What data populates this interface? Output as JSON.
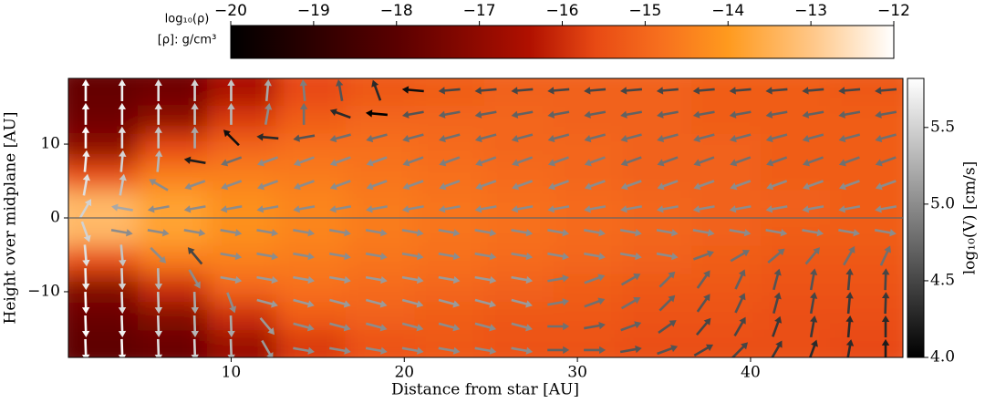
{
  "chart_data": {
    "type": "heatmap",
    "xlabel": "Distance from star  [AU]",
    "ylabel": "Height over midplane [AU]",
    "xlim": [
      0.6,
      48.8
    ],
    "ylim": [
      -18.9,
      18.9
    ],
    "xticks": [
      10,
      20,
      30,
      40
    ],
    "yticks": [
      {
        "value": -10,
        "label": "−10"
      },
      0,
      10
    ],
    "midline": true,
    "density": {
      "label": "log₁₀(ρ)",
      "unit_label": "[ρ]: g/cm³",
      "clim": [
        -20,
        -12
      ],
      "cticks": [
        {
          "value": -20,
          "label": "−20"
        },
        {
          "value": -19,
          "label": "−19"
        },
        {
          "value": -18,
          "label": "−18"
        },
        {
          "value": -17,
          "label": "−17"
        },
        {
          "value": -16,
          "label": "−16"
        },
        {
          "value": -15,
          "label": "−15"
        },
        {
          "value": -14,
          "label": "−14"
        },
        {
          "value": -13,
          "label": "−13"
        },
        {
          "value": -12,
          "label": "−12"
        }
      ],
      "x": [
        2.6,
        6.6,
        10.6,
        14.6,
        18.6,
        22.6,
        26.6,
        30.6,
        34.6,
        38.6,
        42.6,
        46.6
      ],
      "y": [
        17.1,
        13.3,
        9.5,
        5.7,
        1.9,
        -1.9,
        -5.7,
        -9.5,
        -13.3,
        -17.1
      ],
      "values": [
        [
          -17.8,
          -17.6,
          -16.5,
          -15.6,
          -15.3,
          -15.2,
          -15.1,
          -15.1,
          -15.1,
          -15.2,
          -15.2,
          -15.3
        ],
        [
          -17.6,
          -17.0,
          -15.8,
          -15.2,
          -15.0,
          -15.0,
          -15.0,
          -15.1,
          -15.1,
          -15.2,
          -15.2,
          -15.2
        ],
        [
          -17.0,
          -15.6,
          -15.0,
          -14.8,
          -14.8,
          -14.9,
          -15.0,
          -15.0,
          -15.1,
          -15.1,
          -15.2,
          -15.2
        ],
        [
          -15.5,
          -14.5,
          -14.5,
          -14.6,
          -14.7,
          -14.8,
          -14.9,
          -15.0,
          -15.1,
          -15.1,
          -15.2,
          -15.2
        ],
        [
          -13.3,
          -13.8,
          -14.2,
          -14.4,
          -14.6,
          -14.7,
          -14.8,
          -14.9,
          -15.0,
          -15.1,
          -15.1,
          -15.2
        ],
        [
          -13.3,
          -13.8,
          -14.2,
          -14.4,
          -14.6,
          -14.7,
          -14.8,
          -14.9,
          -15.0,
          -15.1,
          -15.2,
          -15.2
        ],
        [
          -15.5,
          -14.6,
          -14.5,
          -14.6,
          -14.7,
          -14.8,
          -14.9,
          -15.0,
          -15.1,
          -15.2,
          -15.3,
          -15.3
        ],
        [
          -17.2,
          -16.0,
          -15.0,
          -14.8,
          -14.9,
          -15.0,
          -15.1,
          -15.2,
          -15.3,
          -15.3,
          -15.4,
          -15.4
        ],
        [
          -17.7,
          -17.2,
          -16.0,
          -15.2,
          -15.1,
          -15.2,
          -15.3,
          -15.3,
          -15.4,
          -15.4,
          -15.5,
          -15.5
        ],
        [
          -17.9,
          -17.7,
          -16.8,
          -15.8,
          -15.4,
          -15.3,
          -15.4,
          -15.4,
          -15.5,
          -15.5,
          -15.5,
          -15.6
        ]
      ]
    },
    "quiver": {
      "label": "log₁₀(V) [cm/s]",
      "clim": [
        4.0,
        5.82
      ],
      "cticks": [
        {
          "value": 4.0,
          "label": "4.0"
        },
        4.5,
        {
          "value": 5.0,
          "label": "5.0"
        },
        5.5
      ],
      "x": [
        1.6,
        3.7,
        5.8,
        7.9,
        10,
        12.1,
        14.2,
        16.3,
        18.4,
        20.5,
        22.6,
        24.7,
        26.8,
        28.9,
        31,
        33.1,
        35.2,
        37.3,
        39.4,
        41.5,
        43.6,
        45.7,
        47.8
      ],
      "y": [
        17.3,
        14.1,
        10.9,
        7.7,
        4.5,
        1.3,
        -1.9,
        -5.1,
        -8.3,
        -11.5,
        -14.7,
        -17.9
      ],
      "angle": [
        [
          90,
          90,
          90,
          90,
          90,
          85,
          95,
          100,
          110,
          175,
          185,
          185,
          185,
          185,
          185,
          185,
          185,
          185,
          185,
          185,
          185,
          185,
          185
        ],
        [
          90,
          90,
          90,
          90,
          90,
          80,
          90,
          160,
          175,
          190,
          190,
          190,
          190,
          190,
          190,
          190,
          190,
          190,
          190,
          190,
          190,
          190,
          190
        ],
        [
          90,
          90,
          90,
          90,
          135,
          175,
          190,
          195,
          195,
          195,
          195,
          195,
          195,
          195,
          195,
          195,
          195,
          195,
          195,
          195,
          195,
          195,
          195
        ],
        [
          85,
          85,
          85,
          170,
          200,
          200,
          200,
          200,
          200,
          200,
          200,
          200,
          200,
          200,
          200,
          200,
          200,
          200,
          200,
          200,
          200,
          200,
          200
        ],
        [
          80,
          80,
          150,
          200,
          200,
          200,
          200,
          200,
          200,
          200,
          200,
          200,
          200,
          200,
          200,
          200,
          200,
          200,
          200,
          200,
          200,
          200,
          200
        ],
        [
          60,
          170,
          190,
          190,
          190,
          190,
          190,
          190,
          190,
          190,
          190,
          190,
          190,
          190,
          190,
          190,
          190,
          190,
          190,
          190,
          190,
          190,
          190
        ],
        [
          -70,
          -10,
          -10,
          -10,
          -10,
          -10,
          -10,
          -10,
          -10,
          -10,
          -10,
          -10,
          -10,
          -10,
          -10,
          -10,
          -10,
          -10,
          -10,
          -10,
          -10,
          -10,
          -10
        ],
        [
          -85,
          -85,
          -45,
          130,
          -10,
          -10,
          -10,
          -10,
          -10,
          -10,
          -10,
          -10,
          -10,
          -10,
          -10,
          -10,
          -10,
          20,
          30,
          40,
          50,
          60,
          65
        ],
        [
          -88,
          -88,
          -88,
          -60,
          -10,
          -10,
          -10,
          -10,
          -10,
          -10,
          -10,
          -10,
          -10,
          10,
          20,
          30,
          45,
          55,
          65,
          75,
          80,
          85,
          88
        ],
        [
          -88,
          -88,
          -88,
          -88,
          -70,
          -15,
          -15,
          -15,
          -15,
          -15,
          -15,
          -15,
          -15,
          10,
          20,
          30,
          45,
          55,
          65,
          75,
          80,
          85,
          88
        ],
        [
          -88,
          -88,
          -88,
          -88,
          -88,
          -50,
          -15,
          -15,
          -15,
          -15,
          -15,
          -15,
          -15,
          0,
          10,
          20,
          35,
          50,
          60,
          70,
          80,
          85,
          90
        ],
        [
          -88,
          -88,
          -88,
          -88,
          -88,
          -60,
          -10,
          -10,
          -10,
          -10,
          -10,
          -10,
          -10,
          0,
          0,
          10,
          20,
          30,
          45,
          60,
          70,
          80,
          90
        ]
      ],
      "log_speed": [
        [
          5.8,
          5.7,
          5.6,
          5.5,
          5.4,
          5.2,
          4.9,
          4.6,
          4.3,
          4.1,
          4.5,
          4.5,
          4.5,
          4.5,
          4.5,
          4.5,
          4.5,
          4.5,
          4.5,
          4.5,
          4.5,
          4.5,
          4.5
        ],
        [
          5.8,
          5.7,
          5.6,
          5.4,
          5.3,
          5.0,
          4.8,
          4.3,
          4.0,
          4.6,
          4.7,
          4.7,
          4.7,
          4.7,
          4.7,
          4.7,
          4.7,
          4.7,
          4.7,
          4.7,
          4.7,
          4.7,
          4.7
        ],
        [
          5.8,
          5.6,
          5.4,
          5.2,
          4.1,
          4.3,
          4.6,
          4.8,
          4.8,
          4.8,
          4.8,
          4.8,
          4.8,
          4.8,
          4.8,
          4.8,
          4.8,
          4.8,
          4.8,
          4.8,
          4.8,
          4.8,
          4.8
        ],
        [
          5.7,
          5.5,
          5.3,
          4.2,
          4.8,
          5.0,
          5.0,
          5.0,
          5.0,
          4.9,
          4.9,
          4.9,
          4.9,
          4.9,
          4.9,
          4.8,
          4.8,
          4.8,
          4.8,
          4.8,
          4.8,
          4.8,
          4.8
        ],
        [
          5.6,
          5.4,
          5.0,
          5.0,
          5.0,
          5.0,
          5.0,
          5.0,
          5.0,
          5.0,
          5.0,
          5.0,
          5.0,
          5.0,
          5.0,
          5.0,
          5.0,
          5.0,
          5.0,
          5.0,
          5.0,
          5.0,
          5.0
        ],
        [
          5.5,
          5.2,
          5.0,
          5.0,
          5.0,
          5.0,
          5.0,
          5.0,
          5.0,
          5.0,
          5.0,
          5.0,
          5.0,
          5.0,
          5.0,
          5.0,
          5.0,
          5.0,
          5.0,
          5.0,
          5.0,
          5.0,
          5.0
        ],
        [
          5.5,
          5.0,
          5.0,
          5.0,
          5.0,
          5.0,
          5.0,
          5.0,
          5.0,
          5.0,
          5.0,
          5.0,
          5.0,
          5.0,
          5.0,
          5.0,
          5.0,
          5.0,
          5.0,
          5.0,
          5.0,
          5.0,
          5.0
        ],
        [
          5.6,
          5.4,
          5.0,
          4.5,
          5.0,
          5.0,
          5.0,
          5.0,
          5.0,
          5.0,
          5.0,
          5.0,
          5.0,
          5.0,
          5.0,
          5.0,
          5.0,
          4.8,
          4.8,
          4.8,
          4.8,
          4.8,
          4.8
        ],
        [
          5.7,
          5.5,
          5.3,
          5.0,
          5.1,
          5.1,
          5.1,
          5.1,
          5.1,
          5.1,
          5.1,
          5.1,
          5.1,
          4.9,
          4.9,
          4.8,
          4.8,
          4.7,
          4.7,
          4.6,
          4.6,
          4.5,
          4.5
        ],
        [
          5.8,
          5.6,
          5.4,
          5.2,
          5.0,
          5.1,
          5.1,
          5.1,
          5.1,
          5.1,
          5.1,
          5.1,
          5.1,
          4.9,
          4.8,
          4.8,
          4.7,
          4.6,
          4.6,
          4.5,
          4.5,
          4.4,
          4.4
        ],
        [
          5.8,
          5.7,
          5.5,
          5.3,
          5.2,
          5.1,
          5.0,
          5.0,
          5.0,
          5.0,
          5.0,
          5.0,
          5.0,
          4.8,
          4.7,
          4.7,
          4.6,
          4.5,
          4.5,
          4.4,
          4.4,
          4.3,
          4.3
        ],
        [
          5.8,
          5.8,
          5.6,
          5.5,
          5.3,
          5.1,
          5.0,
          5.0,
          5.0,
          5.0,
          5.0,
          5.0,
          5.0,
          4.7,
          4.7,
          4.6,
          4.6,
          4.5,
          4.5,
          4.4,
          4.3,
          4.3,
          4.2
        ]
      ]
    }
  }
}
